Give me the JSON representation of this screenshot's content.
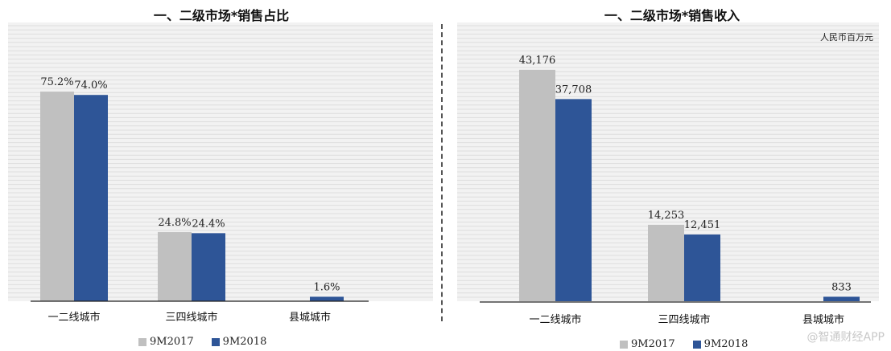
{
  "colors": {
    "series_2017": "#c0c0c0",
    "series_2018": "#2e5597",
    "background": "#f2f2f2",
    "gridline": "#dddddd"
  },
  "watermark": "@智通财经APP",
  "chart_data": [
    {
      "type": "bar",
      "title": "一、二级市场*销售占比",
      "categories": [
        "一二线城市",
        "三四线城市",
        "县城城市"
      ],
      "series": [
        {
          "name": "9M2017",
          "values": [
            75.2,
            24.8,
            null
          ],
          "labels": [
            "75.2%",
            "24.8%",
            ""
          ]
        },
        {
          "name": "9M2018",
          "values": [
            74.0,
            24.4,
            1.6
          ],
          "labels": [
            "74.0%",
            "24.4%",
            "1.6%"
          ]
        }
      ],
      "ylim": [
        0,
        100
      ],
      "unit_note": "",
      "grid": true,
      "legend": "bottom"
    },
    {
      "type": "bar",
      "title": "一、二级市场*销售收入",
      "categories": [
        "一二线城市",
        "三四线城市",
        "县城城市"
      ],
      "series": [
        {
          "name": "9M2017",
          "values": [
            43176,
            14253,
            null
          ],
          "labels": [
            "43,176",
            "14,253",
            ""
          ]
        },
        {
          "name": "9M2018",
          "values": [
            37708,
            12451,
            833
          ],
          "labels": [
            "37,708",
            "12,451",
            "833"
          ]
        }
      ],
      "ylim": [
        0,
        52000
      ],
      "unit_note": "人民币百万元",
      "grid": true,
      "legend": "bottom"
    }
  ]
}
